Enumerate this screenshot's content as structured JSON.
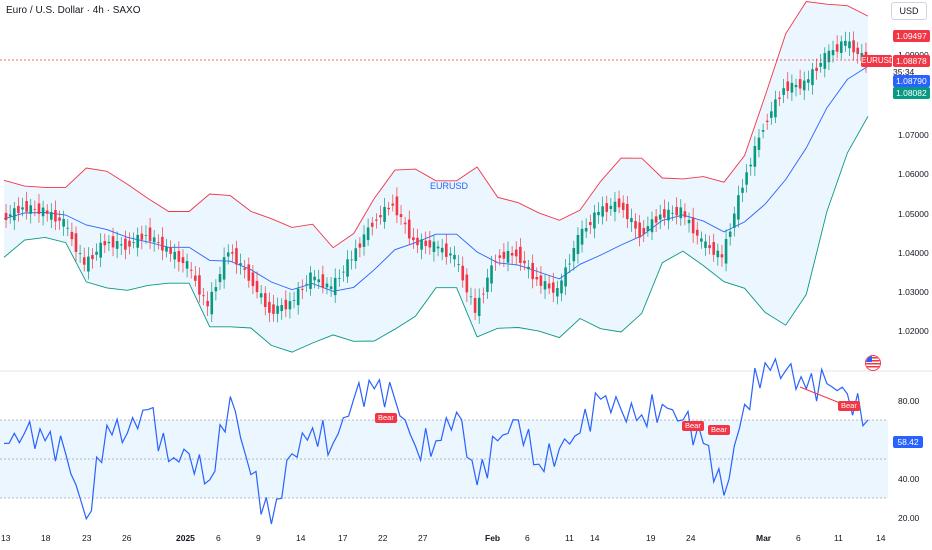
{
  "header": {
    "title": "Euro / U.S. Dollar · 4h · SAXO",
    "currency": "USD"
  },
  "price_axis": {
    "labels": [
      "1.09000",
      "1.07000",
      "1.06000",
      "1.05000",
      "1.04000",
      "1.03000",
      "1.02000"
    ],
    "tags": {
      "upper_band": "1.09497",
      "last_price": "1.08878",
      "middle_band": "1.08790",
      "lower_band": "1.08082"
    },
    "symbol_tag": "EURUSD",
    "countdown": "35:34"
  },
  "series_label": "EURUSD",
  "rsi_panel": {
    "axis_labels": [
      "80.00",
      "40.00",
      "20.00"
    ],
    "value": "58.42",
    "bear_labels": [
      "Bear",
      "Bear",
      "Bear",
      "Bear"
    ]
  },
  "time_axis": [
    "13",
    "18",
    "23",
    "26",
    "2025",
    "6",
    "9",
    "14",
    "17",
    "22",
    "27",
    "Feb",
    "6",
    "11",
    "14",
    "19",
    "24",
    "Mar",
    "6",
    "11",
    "14"
  ],
  "colors": {
    "upper_band": "#f23645",
    "middle_band": "#2962ff",
    "lower_band": "#089981",
    "band_fill": "#e3f2fd",
    "candle_up": "#089981",
    "candle_down": "#f23645",
    "rsi_line": "#2962ff"
  },
  "chart_data": {
    "type": "line",
    "title": "Euro / U.S. Dollar · 4h · SAXO",
    "series": [
      {
        "name": "EURUSD",
        "values": [
          1.048,
          1.051,
          1.05,
          1.047,
          1.036,
          1.042,
          1.041,
          1.044,
          1.04,
          1.036,
          1.025,
          1.04,
          1.033,
          1.024,
          1.026,
          1.033,
          1.03,
          1.038,
          1.047,
          1.052,
          1.042,
          1.041,
          1.038,
          1.024,
          1.038,
          1.039,
          1.032,
          1.029,
          1.043,
          1.05,
          1.052,
          1.044,
          1.049,
          1.05,
          1.042,
          1.038,
          1.057,
          1.072,
          1.082,
          1.083,
          1.09,
          1.094,
          1.089
        ]
      }
    ],
    "ylim": [
      1.015,
      1.097
    ],
    "rsi": {
      "values": [
        51,
        55,
        52,
        47,
        22,
        58,
        55,
        64,
        44,
        47,
        37,
        69,
        39,
        20,
        47,
        57,
        51,
        68,
        72,
        68,
        50,
        52,
        63,
        35,
        52,
        60,
        43,
        49,
        55,
        68,
        64,
        62,
        66,
        60,
        51,
        31,
        66,
        82,
        79,
        72,
        74,
        70,
        60
      ],
      "levels": [
        70,
        50,
        30
      ],
      "ylim": [
        15,
        90
      ]
    }
  }
}
